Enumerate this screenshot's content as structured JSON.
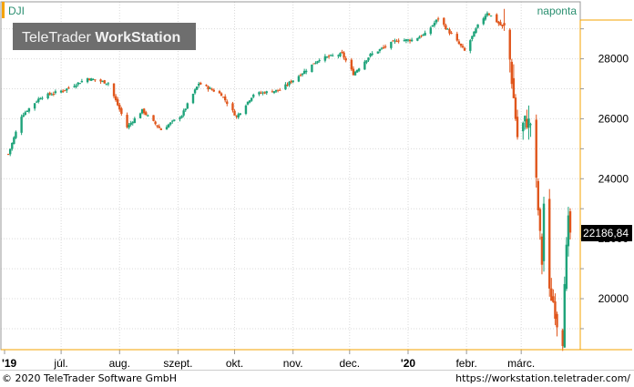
{
  "header": {
    "symbol": "DJI",
    "interval": "naponta",
    "watermark": "TeleTrader WorkStation",
    "watermark_parts": [
      "TeleTrader ",
      "WorkStation"
    ]
  },
  "footer": {
    "copyright": "© 2020 TeleTrader Software GmbH",
    "url": "https://workstation.teletrader.com/"
  },
  "colors": {
    "up": "#1ea37a",
    "down": "#e0561c",
    "accent": "#f5a300",
    "grid": "#d9d9d9",
    "last_price_bg": "#000000",
    "last_price_fg": "#ffffff",
    "watermark_bg": "#6e6e6e"
  },
  "chart_data": {
    "type": "candlestick",
    "title": "DJI",
    "interval": "naponta",
    "last_price": 22186.84,
    "last_price_label": "22186,84",
    "y_ticks": [
      20000,
      22000,
      24000,
      26000,
      28000
    ],
    "y_tick_labels": [
      "20000",
      "22000",
      "24000",
      "26000",
      "28000"
    ],
    "x_tick_labels": [
      "'19",
      "júl.",
      "aug.",
      "szept.",
      "okt.",
      "nov.",
      "dec.",
      "'20",
      "febr.",
      "márc."
    ],
    "x_ticks": [
      "2019-06-01",
      "2019-07-01",
      "2019-08-01",
      "2019-09-01",
      "2019-10-01",
      "2019-11-01",
      "2019-12-01",
      "2020-01-01",
      "2020-02-01",
      "2020-03-01"
    ],
    "ylim": [
      18300,
      29900
    ],
    "xlim": [
      "2019-06-01",
      "2020-03-27"
    ],
    "grid": true,
    "close_path": [
      [
        "2019-06-03",
        24820
      ],
      [
        "2019-06-10",
        26100
      ],
      [
        "2019-06-20",
        26720
      ],
      [
        "2019-07-03",
        26970
      ],
      [
        "2019-07-15",
        27350
      ],
      [
        "2019-07-26",
        27190
      ],
      [
        "2019-08-05",
        25720
      ],
      [
        "2019-08-13",
        26280
      ],
      [
        "2019-08-23",
        25630
      ],
      [
        "2019-09-03",
        26120
      ],
      [
        "2019-09-12",
        27180
      ],
      [
        "2019-09-24",
        26810
      ],
      [
        "2019-10-02",
        26060
      ],
      [
        "2019-10-11",
        26820
      ],
      [
        "2019-10-25",
        26960
      ],
      [
        "2019-11-05",
        27480
      ],
      [
        "2019-11-15",
        28000
      ],
      [
        "2019-11-27",
        28160
      ],
      [
        "2019-12-03",
        27500
      ],
      [
        "2019-12-12",
        28130
      ],
      [
        "2019-12-26",
        28620
      ],
      [
        "2020-01-03",
        28630
      ],
      [
        "2020-01-10",
        28820
      ],
      [
        "2020-01-17",
        29350
      ],
      [
        "2020-01-31",
        28260
      ],
      [
        "2020-02-07",
        29100
      ],
      [
        "2020-02-12",
        29550
      ],
      [
        "2020-02-21",
        29000
      ],
      [
        "2020-02-24",
        27960
      ],
      [
        "2020-02-28",
        25400
      ],
      [
        "2020-03-03",
        25920
      ],
      [
        "2020-03-06",
        25860
      ],
      [
        "2020-03-09",
        23850
      ],
      [
        "2020-03-12",
        21200
      ],
      [
        "2020-03-13",
        23180
      ],
      [
        "2020-03-16",
        20190
      ],
      [
        "2020-03-18",
        19900
      ],
      [
        "2020-03-20",
        19170
      ],
      [
        "2020-03-23",
        18590
      ],
      [
        "2020-03-24",
        20700
      ],
      [
        "2020-03-26",
        22550
      ],
      [
        "2020-03-27",
        22186.84
      ]
    ]
  }
}
